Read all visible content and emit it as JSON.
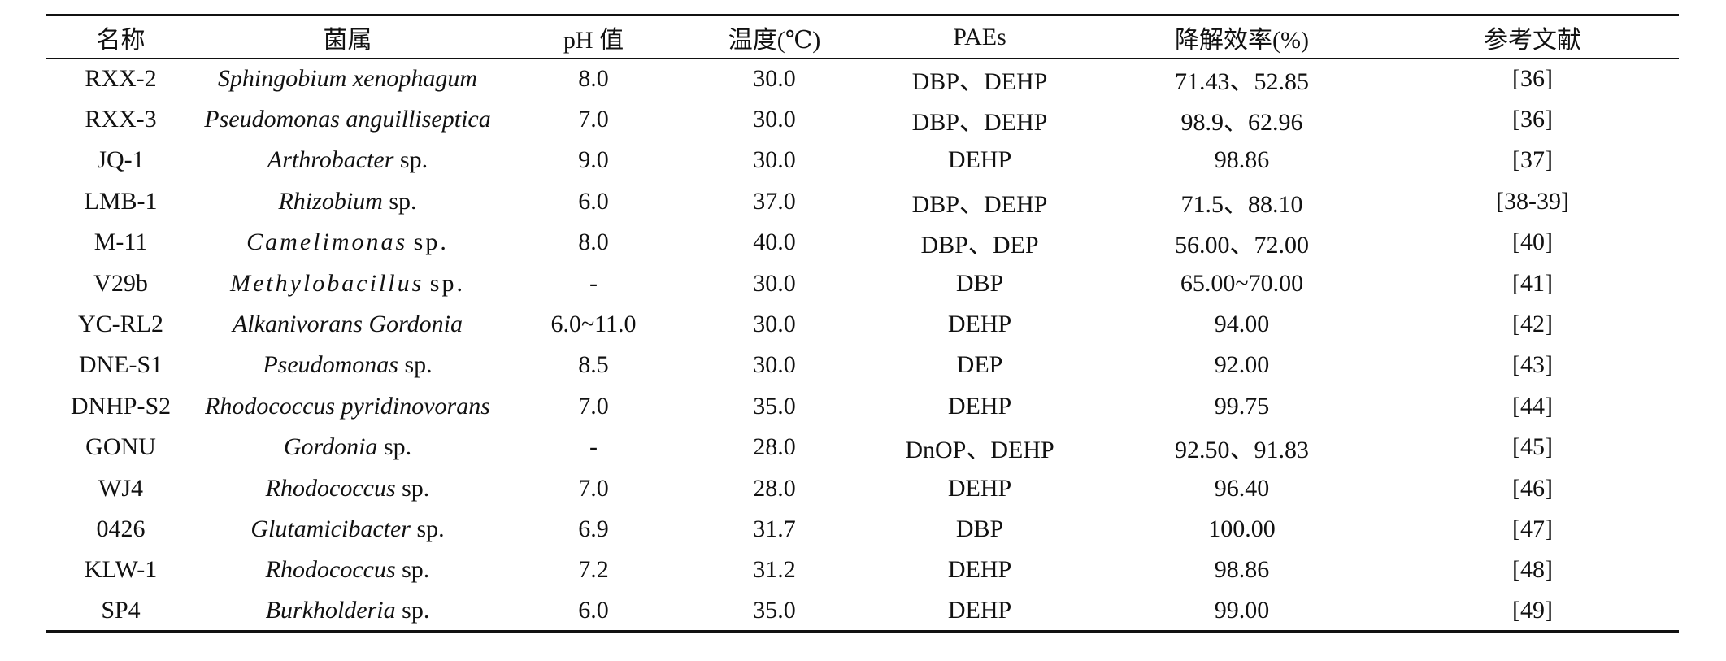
{
  "table": {
    "headers": [
      "名称",
      "菌属",
      "pH 值",
      "温度(℃)",
      "PAEs",
      "降解效率(%)",
      "参考文献"
    ],
    "rows": [
      {
        "name": "RXX-2",
        "genus": "Sphingobium xenophagum",
        "sp": "",
        "ph": "8.0",
        "temp": "30.0",
        "paes": "DBP、DEHP",
        "eff": "71.43、52.85",
        "ref": "[36]"
      },
      {
        "name": "RXX-3",
        "genus": "Pseudomonas anguilliseptica",
        "sp": "",
        "ph": "7.0",
        "temp": "30.0",
        "paes": "DBP、DEHP",
        "eff": "98.9、62.96",
        "ref": "[36]"
      },
      {
        "name": "JQ-1",
        "genus": "Arthrobacter",
        "sp": "sp.",
        "ph": "9.0",
        "temp": "30.0",
        "paes": "DEHP",
        "eff": "98.86",
        "ref": "[37]"
      },
      {
        "name": "LMB-1",
        "genus": "Rhizobium",
        "sp": "sp.",
        "ph": "6.0",
        "temp": "37.0",
        "paes": "DBP、DEHP",
        "eff": "71.5、88.10",
        "ref": "[38-39]"
      },
      {
        "name": "M-11",
        "genus": "Camelimonas",
        "sp": "sp.",
        "ph": "8.0",
        "temp": "40.0",
        "paes": "DBP、DEP",
        "eff": "56.00、72.00",
        "ref": "[40]",
        "spaced": true
      },
      {
        "name": "V29b",
        "genus": "Methylobacillus",
        "sp": "sp.",
        "ph": "-",
        "temp": "30.0",
        "paes": "DBP",
        "eff": "65.00~70.00",
        "ref": "[41]",
        "spaced": true
      },
      {
        "name": "YC-RL2",
        "genus": "Alkanivorans Gordonia",
        "sp": "",
        "ph": "6.0~11.0",
        "temp": "30.0",
        "paes": "DEHP",
        "eff": "94.00",
        "ref": "[42]"
      },
      {
        "name": "DNE-S1",
        "genus": "Pseudomonas",
        "sp": "sp.",
        "ph": "8.5",
        "temp": "30.0",
        "paes": "DEP",
        "eff": "92.00",
        "ref": "[43]"
      },
      {
        "name": "DNHP-S2",
        "genus": "Rhodococcus pyridinovorans",
        "sp": "",
        "ph": "7.0",
        "temp": "35.0",
        "paes": "DEHP",
        "eff": "99.75",
        "ref": "[44]"
      },
      {
        "name": "GONU",
        "genus": "Gordonia",
        "sp": "sp.",
        "ph": "-",
        "temp": "28.0",
        "paes": "DnOP、DEHP",
        "eff": "92.50、91.83",
        "ref": "[45]"
      },
      {
        "name": "WJ4",
        "genus": "Rhodococcus",
        "sp": "sp.",
        "ph": "7.0",
        "temp": "28.0",
        "paes": "DEHP",
        "eff": "96.40",
        "ref": "[46]"
      },
      {
        "name": "0426",
        "genus": "Glutamicibacter",
        "sp": "sp.",
        "ph": "6.9",
        "temp": "31.7",
        "paes": "DBP",
        "eff": "100.00",
        "ref": "[47]"
      },
      {
        "name": "KLW-1",
        "genus": "Rhodococcus",
        "sp": "sp.",
        "ph": "7.2",
        "temp": "31.2",
        "paes": "DEHP",
        "eff": "98.86",
        "ref": "[48]"
      },
      {
        "name": "SP4",
        "genus": "Burkholderia",
        "sp": "sp.",
        "ph": "6.0",
        "temp": "35.0",
        "paes": "DEHP",
        "eff": "99.00",
        "ref": "[49]"
      }
    ]
  }
}
